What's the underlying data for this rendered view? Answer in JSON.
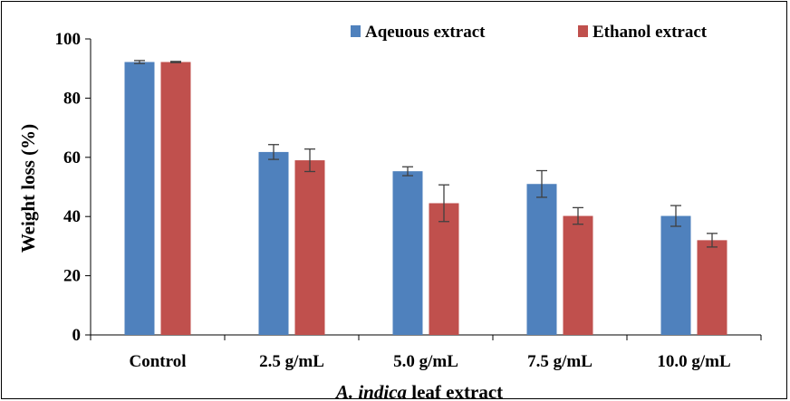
{
  "chart_data": {
    "type": "bar",
    "categories": [
      "Control",
      "2.5 g/mL",
      "5.0 g/mL",
      "7.5 g/mL",
      "10.0 g/mL"
    ],
    "series": [
      {
        "name": "Aqeuous extract",
        "color": "#4F81BD",
        "values": [
          92.2,
          61.8,
          55.3,
          51.0,
          40.2
        ],
        "errors": [
          0.5,
          2.5,
          1.5,
          4.5,
          3.5
        ]
      },
      {
        "name": "Ethanol extract",
        "color": "#C0504D",
        "values": [
          92.2,
          59.0,
          44.5,
          40.2,
          32.0
        ],
        "errors": [
          0.2,
          3.8,
          6.2,
          2.8,
          2.3
        ]
      }
    ],
    "ylim": [
      0,
      100
    ],
    "yticks": [
      0,
      20,
      40,
      60,
      80,
      100
    ],
    "ylabel": "Weight loss (%)",
    "xlabel_italic": "A. indica",
    "xlabel_rest": " leaf extract",
    "legend_position": "top-right",
    "grid": false
  }
}
